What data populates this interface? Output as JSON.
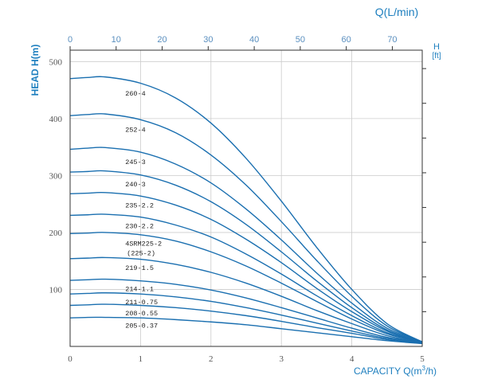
{
  "chart_data": {
    "type": "line",
    "title": "",
    "top_axis": {
      "label": "Q(L/min)",
      "ticks": [
        "0",
        "10",
        "20",
        "30",
        "40",
        "50",
        "60",
        "70"
      ],
      "range": [
        0,
        76.5
      ]
    },
    "right_axis": {
      "label_line1": "H",
      "label_line2": "[ft]"
    },
    "xlabel_prefix": "CAPACITY Q(m",
    "xlabel_sup": "3",
    "xlabel_suffix": "/h)",
    "ylabel": "HEAD H(m)",
    "x_ticks": [
      "0",
      "1",
      "2",
      "3",
      "4",
      "5"
    ],
    "y_ticks": [
      "100",
      "200",
      "300",
      "400",
      "500"
    ],
    "xlim": [
      0,
      5
    ],
    "ylim": [
      0,
      520
    ],
    "grid": true,
    "colors": {
      "curves": "#1a6fb0",
      "frame": "#333333",
      "grid": "#cccccc",
      "axis_text": "#1e7fbf"
    },
    "series": [
      {
        "name": "260-4",
        "x": [
          0,
          0.25,
          0.5,
          1,
          1.5,
          2,
          2.5,
          3,
          3.5,
          4,
          4.5,
          5
        ],
        "y": [
          470,
          472,
          473,
          462,
          436,
          392,
          330,
          255,
          174,
          100,
          40,
          8
        ]
      },
      {
        "name": "252-4",
        "x": [
          0,
          0.25,
          0.5,
          1,
          1.5,
          2,
          2.5,
          3,
          3.5,
          4,
          4.5,
          5
        ],
        "y": [
          405,
          407,
          408,
          398,
          375,
          336,
          283,
          219,
          151,
          88,
          36,
          8
        ]
      },
      {
        "name": "245-3",
        "x": [
          0,
          0.25,
          0.5,
          1,
          1.5,
          2,
          2.5,
          3,
          3.5,
          4,
          4.5,
          5
        ],
        "y": [
          346,
          348,
          349,
          341,
          320,
          287,
          241,
          187,
          129,
          76,
          32,
          8
        ]
      },
      {
        "name": "240-3",
        "x": [
          0,
          0.25,
          0.5,
          1,
          1.5,
          2,
          2.5,
          3,
          3.5,
          4,
          4.5,
          5
        ],
        "y": [
          306,
          307,
          308,
          301,
          283,
          254,
          214,
          166,
          115,
          68,
          29,
          7
        ]
      },
      {
        "name": "235-2.2",
        "x": [
          0,
          0.25,
          0.5,
          1,
          1.5,
          2,
          2.5,
          3,
          3.5,
          4,
          4.5,
          5
        ],
        "y": [
          268,
          269,
          270,
          264,
          248,
          223,
          188,
          147,
          102,
          61,
          27,
          7
        ]
      },
      {
        "name": "230-2.2",
        "x": [
          0,
          0.25,
          0.5,
          1,
          1.5,
          2,
          2.5,
          3,
          3.5,
          4,
          4.5,
          5
        ],
        "y": [
          230,
          231,
          232,
          227,
          213,
          192,
          162,
          127,
          89,
          54,
          24,
          7
        ]
      },
      {
        "name": "4SRM225-2",
        "x": [
          0,
          0.25,
          0.5,
          1,
          1.5,
          2,
          2.5,
          3,
          3.5,
          4,
          4.5,
          5
        ],
        "y": [
          198,
          199,
          200,
          196,
          185,
          166,
          141,
          111,
          79,
          48,
          22,
          7
        ]
      },
      {
        "name": "219-1.5",
        "x": [
          0,
          0.25,
          0.5,
          1,
          1.5,
          2,
          2.5,
          3,
          3.5,
          4,
          4.5,
          5
        ],
        "y": [
          154,
          155,
          156,
          153,
          144,
          130,
          111,
          88,
          63,
          40,
          19,
          6
        ]
      },
      {
        "name": "214-1.1",
        "x": [
          0,
          0.25,
          0.5,
          1,
          1.5,
          2,
          2.5,
          3,
          3.5,
          4,
          4.5,
          5
        ],
        "y": [
          116,
          117,
          118,
          115,
          109,
          99,
          85,
          68,
          50,
          32,
          16,
          6
        ]
      },
      {
        "name": "211-0.75",
        "x": [
          0,
          0.25,
          0.5,
          1,
          1.5,
          2,
          2.5,
          3,
          3.5,
          4,
          4.5,
          5
        ],
        "y": [
          92,
          93,
          94,
          92,
          87,
          79,
          68,
          55,
          41,
          27,
          14,
          6
        ]
      },
      {
        "name": "208-0.55",
        "x": [
          0,
          0.25,
          0.5,
          1,
          1.5,
          2,
          2.5,
          3,
          3.5,
          4,
          4.5,
          5
        ],
        "y": [
          72,
          73,
          74,
          72,
          68,
          62,
          54,
          44,
          33,
          23,
          12,
          5
        ]
      },
      {
        "name": "205-0.37",
        "x": [
          0,
          0.25,
          0.5,
          1,
          1.5,
          2,
          2.5,
          3,
          3.5,
          4,
          4.5,
          5
        ],
        "y": [
          50,
          51,
          51,
          50,
          47,
          43,
          38,
          31,
          24,
          17,
          10,
          5
        ]
      }
    ],
    "annotations": [
      {
        "text": "(225-2)",
        "near_series": "4SRM225-2"
      }
    ]
  }
}
